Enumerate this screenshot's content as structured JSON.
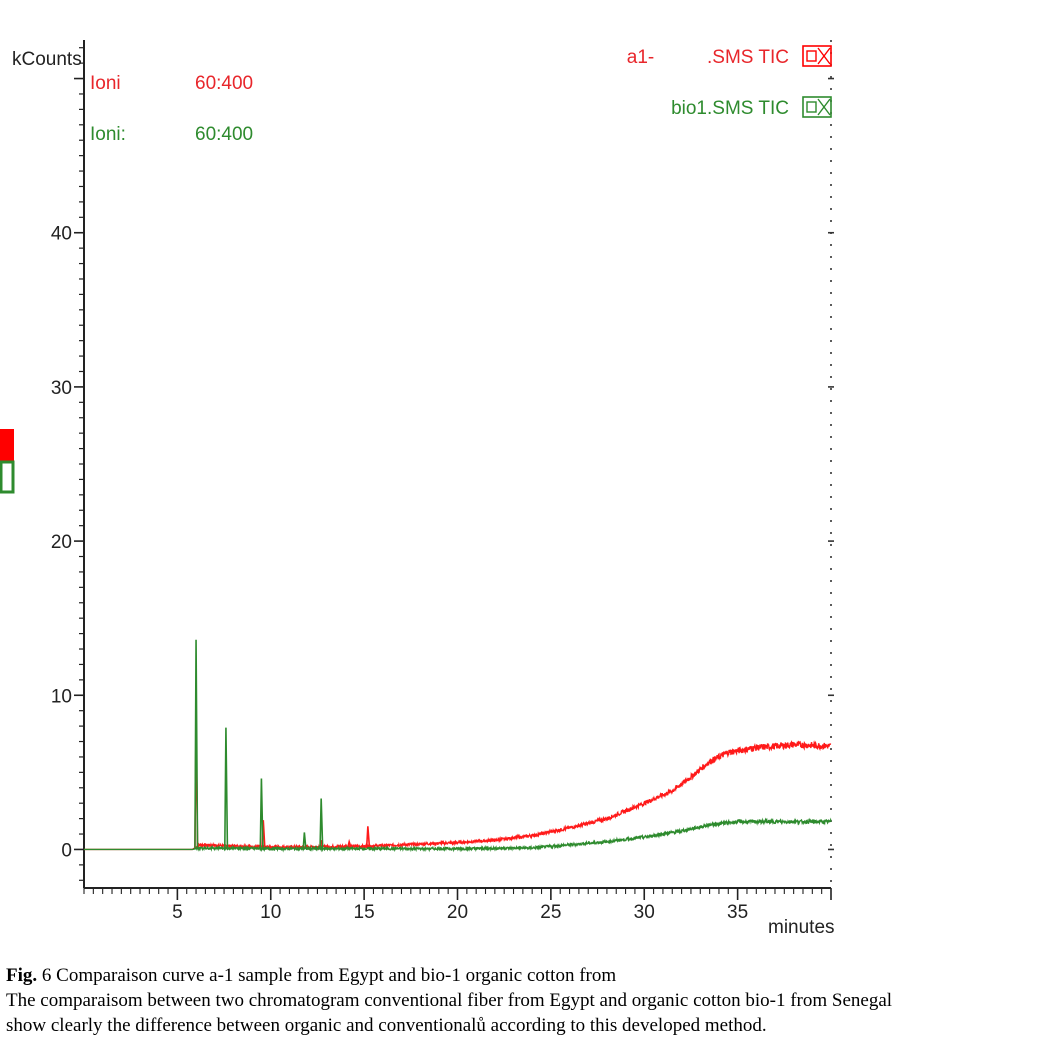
{
  "chart_data": {
    "type": "line",
    "y_unit_label": "kCounts",
    "x_unit_label": "minutes",
    "xlim": [
      0,
      40
    ],
    "ylim": [
      -2.5,
      52.5
    ],
    "x_ticks": [
      5,
      10,
      15,
      20,
      25,
      30,
      35
    ],
    "y_ticks": [
      0,
      10,
      20,
      30,
      40
    ],
    "grid": false,
    "legend_placement": "top-right",
    "ion_rows": [
      {
        "label": "Ioni",
        "value": "60:400",
        "color": "#e8262b"
      },
      {
        "label": "Ioni:",
        "value": "60:400",
        "color": "#2e8b2e"
      }
    ],
    "series": [
      {
        "name": "a1-          .SMS TIC",
        "color": "#ff1a1a",
        "baseline": [
          [
            0,
            0
          ],
          [
            5.8,
            0
          ],
          [
            6.2,
            0.3
          ],
          [
            10,
            0.15
          ],
          [
            15,
            0.2
          ],
          [
            17,
            0.3
          ],
          [
            20,
            0.45
          ],
          [
            22,
            0.6
          ],
          [
            24,
            0.9
          ],
          [
            26,
            1.4
          ],
          [
            28,
            2.0
          ],
          [
            30,
            3.0
          ],
          [
            31.5,
            3.8
          ],
          [
            32.5,
            4.7
          ],
          [
            33.5,
            5.7
          ],
          [
            34.5,
            6.3
          ],
          [
            36,
            6.6
          ],
          [
            38,
            6.8
          ],
          [
            40,
            6.7
          ]
        ],
        "peaks": [
          [
            6.0,
            8.2
          ],
          [
            9.6,
            1.9
          ],
          [
            12.7,
            0.6
          ],
          [
            14.2,
            0.5
          ],
          [
            15.2,
            1.5
          ]
        ]
      },
      {
        "name": "bio1.SMS TIC",
        "color": "#2e8b2e",
        "baseline": [
          [
            0,
            0
          ],
          [
            5.8,
            0
          ],
          [
            6.2,
            0.1
          ],
          [
            10,
            0.05
          ],
          [
            15,
            0.05
          ],
          [
            20,
            0.05
          ],
          [
            24,
            0.1
          ],
          [
            26,
            0.3
          ],
          [
            28,
            0.5
          ],
          [
            30,
            0.8
          ],
          [
            32,
            1.2
          ],
          [
            33.5,
            1.6
          ],
          [
            35,
            1.8
          ],
          [
            38,
            1.8
          ],
          [
            40,
            1.8
          ]
        ],
        "peaks": [
          [
            6.0,
            13.6
          ],
          [
            7.6,
            7.9
          ],
          [
            9.5,
            4.6
          ],
          [
            11.8,
            1.1
          ],
          [
            12.7,
            3.3
          ]
        ]
      }
    ]
  },
  "caption": {
    "fig_label": "Fig.",
    "line1": " 6  Comparaison curve a-1 sample from Egypt and bio-1 organic cotton from",
    "line2": "The comparaisom  between  two chromatogram conventional fiber  from Egypt and organic cotton bio-1 from Senegal",
    "line3": "show clearly the  difference  between  organic and conventionalů according to this  developed method."
  }
}
